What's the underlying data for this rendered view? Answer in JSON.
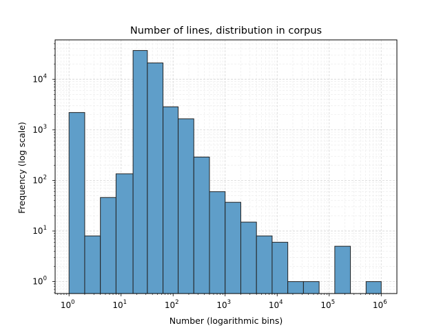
{
  "chart_data": {
    "type": "bar",
    "title": "Number of lines, distribution in corpus",
    "xlabel": "Number (logarithmic bins)",
    "ylabel": "Frequency (log scale)",
    "x_scale": "log",
    "y_scale": "log",
    "xlim": [
      0.54,
      2000000
    ],
    "ylim": [
      0.58,
      60000
    ],
    "grid": true,
    "bar_color": "#5f9ec9",
    "edge_color": "#222222",
    "bins": [
      {
        "x0": 1,
        "x1": 2,
        "value": 2200
      },
      {
        "x0": 2,
        "x1": 4,
        "value": 8
      },
      {
        "x0": 4,
        "x1": 8,
        "value": 46
      },
      {
        "x0": 8,
        "x1": 17,
        "value": 135
      },
      {
        "x0": 17,
        "x1": 32,
        "value": 37000
      },
      {
        "x0": 32,
        "x1": 64,
        "value": 21000
      },
      {
        "x0": 64,
        "x1": 125,
        "value": 2850
      },
      {
        "x0": 125,
        "x1": 250,
        "value": 1650
      },
      {
        "x0": 250,
        "x1": 500,
        "value": 290
      },
      {
        "x0": 500,
        "x1": 1000,
        "value": 60
      },
      {
        "x0": 1000,
        "x1": 2000,
        "value": 37
      },
      {
        "x0": 2000,
        "x1": 4000,
        "value": 15
      },
      {
        "x0": 4000,
        "x1": 8000,
        "value": 8
      },
      {
        "x0": 8000,
        "x1": 16000,
        "value": 6
      },
      {
        "x0": 16000,
        "x1": 32000,
        "value": 1
      },
      {
        "x0": 32000,
        "x1": 64000,
        "value": 1
      },
      {
        "x0": 128000,
        "x1": 256000,
        "value": 5
      },
      {
        "x0": 512000,
        "x1": 1000000,
        "value": 1
      }
    ],
    "x_ticks": [
      {
        "value": 1,
        "base": "10",
        "exp": "0"
      },
      {
        "value": 10,
        "base": "10",
        "exp": "1"
      },
      {
        "value": 100,
        "base": "10",
        "exp": "2"
      },
      {
        "value": 1000,
        "base": "10",
        "exp": "3"
      },
      {
        "value": 10000,
        "base": "10",
        "exp": "4"
      },
      {
        "value": 100000,
        "base": "10",
        "exp": "5"
      },
      {
        "value": 1000000,
        "base": "10",
        "exp": "6"
      }
    ],
    "y_ticks": [
      {
        "value": 1,
        "base": "10",
        "exp": "0"
      },
      {
        "value": 10,
        "base": "10",
        "exp": "1"
      },
      {
        "value": 100,
        "base": "10",
        "exp": "2"
      },
      {
        "value": 1000,
        "base": "10",
        "exp": "3"
      },
      {
        "value": 10000,
        "base": "10",
        "exp": "4"
      }
    ]
  }
}
